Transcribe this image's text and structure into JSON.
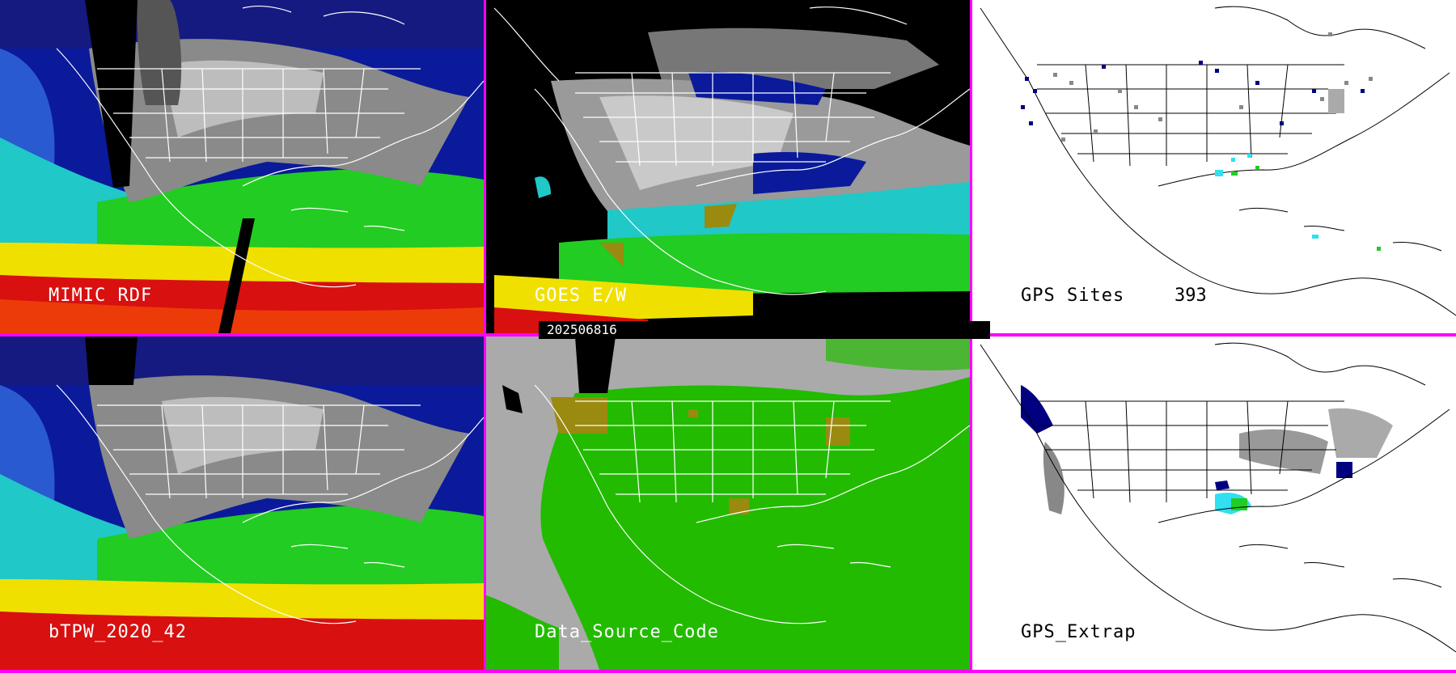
{
  "timestamp": "202506816",
  "panels": [
    {
      "id": "mimic",
      "label": "MIMIC RDF",
      "style": "satellite"
    },
    {
      "id": "goes",
      "label": "GOES E/W",
      "style": "satellite-masked"
    },
    {
      "id": "gps-sites",
      "label": "GPS Sites",
      "count": "393",
      "style": "map"
    },
    {
      "id": "btpw",
      "label": "bTPW_2020_42",
      "style": "satellite"
    },
    {
      "id": "dsc",
      "label": "Data_Source_Code",
      "style": "source"
    },
    {
      "id": "gps-extrap",
      "label": "GPS_Extrap",
      "style": "map"
    }
  ],
  "colors": {
    "border": "#ff00ff",
    "dark-blue": "#0a1a9a",
    "navy": "#000070",
    "cyan": "#30e0f0",
    "green": "#22cc22",
    "yellow": "#f0e000",
    "red": "#d81010",
    "olive": "#9a8a10",
    "gray-bg": "#aaaaaa"
  }
}
